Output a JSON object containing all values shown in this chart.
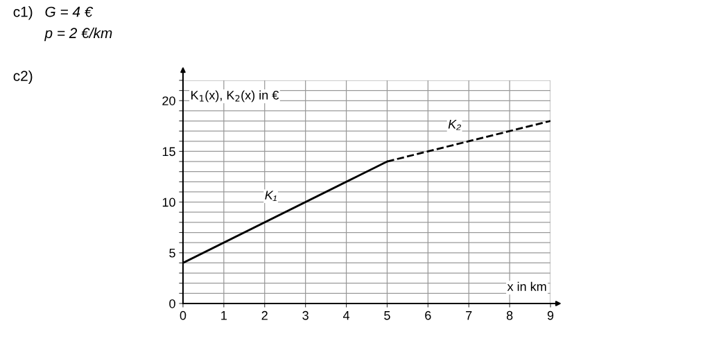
{
  "chart_data": {
    "type": "line",
    "annotations": [
      "c1)",
      "G = 4 €",
      "p = 2 €/km",
      "c2)"
    ],
    "xlabel": "x in km",
    "ylabel": "K$_{1}$(x), K$_{2}$(x) in €",
    "series": [
      {
        "name": "K₁",
        "color": "#000000",
        "line_style": "solid",
        "x": [
          0,
          5
        ],
        "values": [
          4,
          14
        ]
      },
      {
        "name": "K₂",
        "color": "#000000",
        "line_style": "dashed",
        "x": [
          5,
          9
        ],
        "values": [
          14,
          18
        ]
      }
    ],
    "xlim": [
      0,
      9
    ],
    "xticks": [
      0,
      1,
      2,
      3,
      4,
      5,
      6,
      7,
      8,
      9
    ],
    "ylim": [
      0,
      22
    ],
    "yticks": [
      0,
      {
        "value": 1,
        "label": null
      },
      {
        "value": 2,
        "label": null
      },
      {
        "value": 3,
        "label": null
      },
      {
        "value": 4,
        "label": null
      },
      5,
      {
        "value": 6,
        "label": null
      },
      {
        "value": 7,
        "label": null
      },
      {
        "value": 8,
        "label": null
      },
      {
        "value": 9,
        "label": null
      },
      10,
      {
        "value": 11,
        "label": null
      },
      {
        "value": 12,
        "label": null
      },
      {
        "value": 13,
        "label": null
      },
      {
        "value": 14,
        "label": null
      },
      15,
      {
        "value": 16,
        "label": null
      },
      {
        "value": 17,
        "label": null
      },
      {
        "value": 18,
        "label": null
      },
      {
        "value": 19,
        "label": null
      },
      20,
      {
        "value": 21,
        "label": null
      },
      {
        "value": 22,
        "label": null
      }
    ],
    "grid": true,
    "marker": "none",
    "legend": false
  }
}
